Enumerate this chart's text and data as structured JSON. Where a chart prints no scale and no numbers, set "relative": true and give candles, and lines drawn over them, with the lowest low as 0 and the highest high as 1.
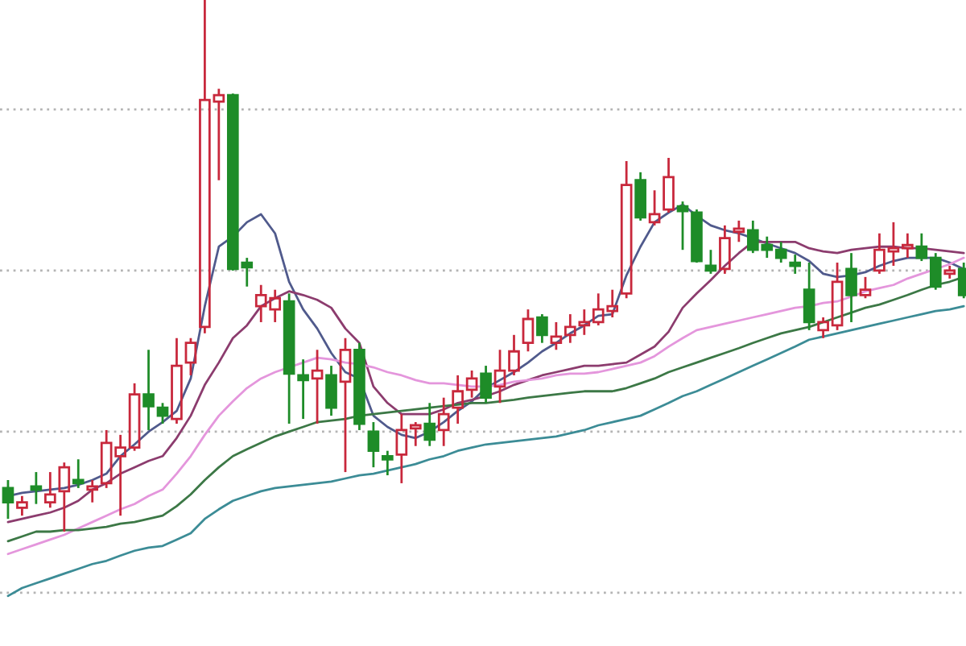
{
  "chart_data": {
    "type": "candlestick",
    "relative": true,
    "ref_lines": [
      {
        "axis": "y",
        "value": -0.115,
        "color": "#b4b4b4",
        "line_style": "dotted"
      },
      {
        "axis": "y",
        "value": 0.188,
        "color": "#b4b4b4",
        "line_style": "dotted"
      },
      {
        "axis": "y",
        "value": 0.491,
        "color": "#b4b4b4",
        "line_style": "dotted"
      },
      {
        "axis": "y",
        "value": 0.794,
        "color": "#b4b4b4",
        "line_style": "dotted"
      }
    ],
    "categories": [
      null,
      null,
      null,
      null,
      null,
      null,
      null,
      null,
      null,
      null,
      null,
      null,
      null,
      null,
      null,
      null,
      null,
      null,
      null,
      null,
      null,
      null,
      null,
      null,
      null,
      null,
      null,
      null,
      null,
      null,
      null,
      null,
      null,
      null,
      null,
      null,
      null,
      null,
      null,
      null,
      null,
      null,
      null,
      null,
      null,
      null,
      null,
      null,
      null,
      null,
      null,
      null,
      null,
      null,
      null,
      null,
      null,
      null,
      null,
      null,
      null,
      null,
      null,
      null,
      null,
      null,
      null,
      null,
      null
    ],
    "ohlc": [
      [
        0.082,
        0.097,
        0.024,
        0.055
      ],
      [
        0.045,
        0.067,
        0.03,
        0.055
      ],
      [
        0.085,
        0.112,
        0.052,
        0.079
      ],
      [
        0.055,
        0.112,
        0.045,
        0.07
      ],
      [
        0.076,
        0.13,
        0,
        0.121
      ],
      [
        0.097,
        0.136,
        0.082,
        0.091
      ],
      [
        0.079,
        0.097,
        0.055,
        0.085
      ],
      [
        0.091,
        0.191,
        0.082,
        0.167
      ],
      [
        0.142,
        0.182,
        0.03,
        0.158
      ],
      [
        0.158,
        0.279,
        0.152,
        0.258
      ],
      [
        0.258,
        0.342,
        0.191,
        0.236
      ],
      [
        0.233,
        0.242,
        0.203,
        0.218
      ],
      [
        0.212,
        0.364,
        0.203,
        0.312
      ],
      [
        0.318,
        0.364,
        0.294,
        0.355
      ],
      [
        0.385,
        1,
        0.373,
        0.812
      ],
      [
        0.809,
        0.833,
        0.661,
        0.821
      ],
      [
        0.821,
        0.824,
        0.491,
        0.494
      ],
      [
        0.506,
        0.515,
        0.461,
        0.497
      ],
      [
        0.424,
        0.464,
        0.394,
        0.445
      ],
      [
        0.418,
        0.455,
        0.394,
        0.439
      ],
      [
        0.433,
        0.448,
        0.203,
        0.297
      ],
      [
        0.294,
        0.324,
        0.212,
        0.285
      ],
      [
        0.288,
        0.342,
        0.203,
        0.303
      ],
      [
        0.294,
        0.312,
        0.218,
        0.233
      ],
      [
        0.282,
        0.364,
        0.112,
        0.342
      ],
      [
        0.342,
        0.355,
        0.191,
        0.203
      ],
      [
        0.188,
        0.206,
        0.121,
        0.152
      ],
      [
        0.142,
        0.152,
        0.106,
        0.136
      ],
      [
        0.145,
        0.221,
        0.091,
        0.191
      ],
      [
        0.194,
        0.206,
        0.161,
        0.2
      ],
      [
        0.203,
        0.242,
        0.161,
        0.173
      ],
      [
        0.191,
        0.252,
        0.161,
        0.221
      ],
      [
        0.233,
        0.294,
        0.203,
        0.264
      ],
      [
        0.267,
        0.303,
        0.252,
        0.288
      ],
      [
        0.297,
        0.312,
        0.242,
        0.252
      ],
      [
        0.273,
        0.342,
        0.242,
        0.303
      ],
      [
        0.303,
        0.37,
        0.294,
        0.339
      ],
      [
        0.355,
        0.418,
        0.339,
        0.4
      ],
      [
        0.403,
        0.409,
        0.355,
        0.37
      ],
      [
        0.355,
        0.394,
        0.342,
        0.367
      ],
      [
        0.37,
        0.409,
        0.355,
        0.385
      ],
      [
        0.388,
        0.418,
        0.37,
        0.394
      ],
      [
        0.394,
        0.448,
        0.388,
        0.418
      ],
      [
        0.415,
        0.455,
        0.403,
        0.424
      ],
      [
        0.448,
        0.697,
        0.439,
        0.652
      ],
      [
        0.661,
        0.676,
        0.585,
        0.591
      ],
      [
        0.582,
        0.642,
        0.576,
        0.597
      ],
      [
        0.606,
        0.703,
        0.6,
        0.667
      ],
      [
        0.612,
        0.621,
        0.53,
        0.603
      ],
      [
        0.6,
        0.606,
        0.506,
        0.509
      ],
      [
        0.5,
        0.53,
        0.485,
        0.491
      ],
      [
        0.494,
        0.576,
        0.485,
        0.552
      ],
      [
        0.564,
        0.585,
        0.545,
        0.57
      ],
      [
        0.567,
        0.585,
        0.524,
        0.53
      ],
      [
        0.539,
        0.555,
        0.515,
        0.53
      ],
      [
        0.53,
        0.545,
        0.506,
        0.515
      ],
      [
        0.506,
        0.521,
        0.485,
        0.5
      ],
      [
        0.455,
        0.506,
        0.379,
        0.394
      ],
      [
        0.379,
        0.403,
        0.364,
        0.394
      ],
      [
        0.388,
        0.506,
        0.379,
        0.47
      ],
      [
        0.494,
        0.524,
        0.394,
        0.445
      ],
      [
        0.445,
        0.479,
        0.439,
        0.455
      ],
      [
        0.491,
        0.561,
        0.485,
        0.53
      ],
      [
        0.527,
        0.582,
        0.5,
        0.533
      ],
      [
        0.533,
        0.561,
        0.515,
        0.539
      ],
      [
        0.536,
        0.561,
        0.509,
        0.515
      ],
      [
        0.515,
        0.524,
        0.455,
        0.461
      ],
      [
        0.485,
        0.5,
        0.476,
        0.491
      ],
      [
        0.494,
        0.506,
        0.439,
        0.445
      ]
    ],
    "colors": [
      "#1e8c28",
      "#c8283c",
      "#1e8c28",
      "#c8283c",
      "#c8283c",
      "#1e8c28",
      "#c8283c",
      "#c8283c",
      "#c8283c",
      "#c8283c",
      "#1e8c28",
      "#1e8c28",
      "#c8283c",
      "#c8283c",
      "#c8283c",
      "#c8283c",
      "#1e8c28",
      "#1e8c28",
      "#c8283c",
      "#c8283c",
      "#1e8c28",
      "#1e8c28",
      "#c8283c",
      "#1e8c28",
      "#c8283c",
      "#1e8c28",
      "#1e8c28",
      "#1e8c28",
      "#c8283c",
      "#c8283c",
      "#1e8c28",
      "#c8283c",
      "#c8283c",
      "#c8283c",
      "#1e8c28",
      "#c8283c",
      "#c8283c",
      "#c8283c",
      "#1e8c28",
      "#c8283c",
      "#c8283c",
      "#c8283c",
      "#c8283c",
      "#c8283c",
      "#c8283c",
      "#1e8c28",
      "#c8283c",
      "#c8283c",
      "#1e8c28",
      "#1e8c28",
      "#1e8c28",
      "#c8283c",
      "#c8283c",
      "#1e8c28",
      "#1e8c28",
      "#1e8c28",
      "#1e8c28",
      "#1e8c28",
      "#c8283c",
      "#c8283c",
      "#1e8c28",
      "#c8283c",
      "#c8283c",
      "#c8283c",
      "#c8283c",
      "#1e8c28",
      "#1e8c28",
      "#c8283c",
      "#1e8c28"
    ],
    "series": [
      {
        "type": "line",
        "color": "#505a8c",
        "values": [
          0.067,
          0.073,
          0.076,
          0.079,
          0.082,
          0.088,
          0.097,
          0.109,
          0.142,
          0.164,
          0.188,
          0.206,
          0.227,
          0.288,
          0.424,
          0.536,
          0.555,
          0.582,
          0.597,
          0.561,
          0.47,
          0.418,
          0.382,
          0.336,
          0.3,
          0.288,
          0.218,
          0.197,
          0.182,
          0.176,
          0.188,
          0.206,
          0.227,
          0.245,
          0.27,
          0.285,
          0.3,
          0.318,
          0.339,
          0.355,
          0.373,
          0.388,
          0.406,
          0.409,
          0.482,
          0.536,
          0.582,
          0.6,
          0.615,
          0.594,
          0.576,
          0.567,
          0.561,
          0.552,
          0.542,
          0.533,
          0.524,
          0.509,
          0.485,
          0.479,
          0.482,
          0.488,
          0.5,
          0.509,
          0.515,
          0.515,
          0.515,
          0.506,
          0.494
        ]
      },
      {
        "type": "line",
        "color": "#8c3c6e",
        "values": [
          0.018,
          0.024,
          0.03,
          0.036,
          0.045,
          0.058,
          0.079,
          0.091,
          0.109,
          0.121,
          0.133,
          0.142,
          0.176,
          0.218,
          0.276,
          0.318,
          0.364,
          0.388,
          0.424,
          0.439,
          0.452,
          0.445,
          0.436,
          0.421,
          0.382,
          0.355,
          0.273,
          0.242,
          0.221,
          0.221,
          0.221,
          0.23,
          0.242,
          0.248,
          0.255,
          0.264,
          0.276,
          0.285,
          0.294,
          0.3,
          0.306,
          0.312,
          0.312,
          0.315,
          0.318,
          0.333,
          0.348,
          0.376,
          0.421,
          0.448,
          0.473,
          0.5,
          0.524,
          0.545,
          0.545,
          0.545,
          0.545,
          0.533,
          0.527,
          0.524,
          0.53,
          0.533,
          0.536,
          0.536,
          0.533,
          0.533,
          0.53,
          0.527,
          0.524
        ]
      },
      {
        "type": "line",
        "color": "#e496dc",
        "values": [
          -0.042,
          -0.033,
          -0.024,
          -0.015,
          -0.006,
          0.006,
          0.018,
          0.03,
          0.042,
          0.052,
          0.067,
          0.079,
          0.109,
          0.142,
          0.182,
          0.218,
          0.245,
          0.27,
          0.288,
          0.3,
          0.309,
          0.318,
          0.327,
          0.324,
          0.318,
          0.315,
          0.309,
          0.3,
          0.294,
          0.285,
          0.279,
          0.279,
          0.276,
          0.273,
          0.273,
          0.276,
          0.282,
          0.285,
          0.288,
          0.294,
          0.297,
          0.297,
          0.3,
          0.306,
          0.312,
          0.318,
          0.33,
          0.348,
          0.364,
          0.379,
          0.385,
          0.391,
          0.397,
          0.403,
          0.409,
          0.415,
          0.421,
          0.424,
          0.43,
          0.433,
          0.442,
          0.452,
          0.458,
          0.464,
          0.476,
          0.485,
          0.494,
          0.503,
          0.515
        ]
      },
      {
        "type": "line",
        "color": "#3c7846",
        "values": [
          -0.018,
          -0.009,
          0,
          0,
          0.003,
          0.003,
          0.006,
          0.009,
          0.015,
          0.018,
          0.024,
          0.03,
          0.048,
          0.07,
          0.097,
          0.121,
          0.142,
          0.155,
          0.167,
          0.179,
          0.188,
          0.197,
          0.206,
          0.209,
          0.212,
          0.218,
          0.221,
          0.224,
          0.227,
          0.23,
          0.233,
          0.236,
          0.239,
          0.242,
          0.242,
          0.245,
          0.248,
          0.252,
          0.255,
          0.258,
          0.261,
          0.264,
          0.264,
          0.264,
          0.27,
          0.279,
          0.288,
          0.3,
          0.309,
          0.318,
          0.327,
          0.336,
          0.345,
          0.355,
          0.364,
          0.373,
          0.379,
          0.385,
          0.394,
          0.403,
          0.412,
          0.421,
          0.427,
          0.436,
          0.445,
          0.455,
          0.464,
          0.47,
          0.479
        ]
      },
      {
        "type": "line",
        "color": "#3c8c96",
        "values": [
          -0.121,
          -0.106,
          -0.097,
          -0.088,
          -0.079,
          -0.07,
          -0.061,
          -0.055,
          -0.045,
          -0.036,
          -0.03,
          -0.027,
          -0.015,
          -0.003,
          0.024,
          0.042,
          0.058,
          0.067,
          0.076,
          0.082,
          0.085,
          0.088,
          0.091,
          0.094,
          0.1,
          0.106,
          0.109,
          0.115,
          0.121,
          0.127,
          0.136,
          0.142,
          0.152,
          0.158,
          0.164,
          0.167,
          0.17,
          0.173,
          0.176,
          0.179,
          0.185,
          0.191,
          0.2,
          0.206,
          0.212,
          0.218,
          0.23,
          0.242,
          0.255,
          0.264,
          0.276,
          0.288,
          0.3,
          0.312,
          0.324,
          0.336,
          0.348,
          0.361,
          0.367,
          0.373,
          0.379,
          0.385,
          0.391,
          0.397,
          0.403,
          0.409,
          0.415,
          0.418,
          0.424
        ]
      }
    ]
  }
}
